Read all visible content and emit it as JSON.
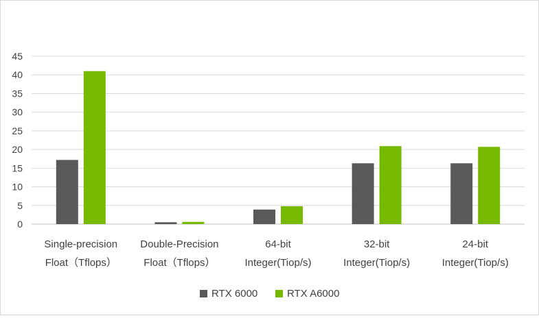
{
  "chart_data": {
    "type": "bar",
    "categories": [
      [
        "Single-precision",
        "Float（Tflops）"
      ],
      [
        "Double-Precision",
        "Float（Tflops）"
      ],
      [
        "64-bit",
        "Integer(Tiop/s)"
      ],
      [
        "32-bit",
        "Integer(Tiop/s)"
      ],
      [
        "24-bit",
        "Integer(Tiop/s)"
      ]
    ],
    "series": [
      {
        "name": "RTX 6000",
        "color": "#595959",
        "values": [
          17.2,
          0.5,
          3.9,
          16.3,
          16.3
        ]
      },
      {
        "name": "RTX A6000",
        "color": "#76b900",
        "values": [
          41.0,
          0.6,
          4.8,
          20.9,
          20.7
        ]
      }
    ],
    "ylim": [
      0,
      45
    ],
    "yticks": [
      0,
      5,
      10,
      15,
      20,
      25,
      30,
      35,
      40,
      45
    ],
    "grid": true,
    "legend": "bottom-center"
  }
}
